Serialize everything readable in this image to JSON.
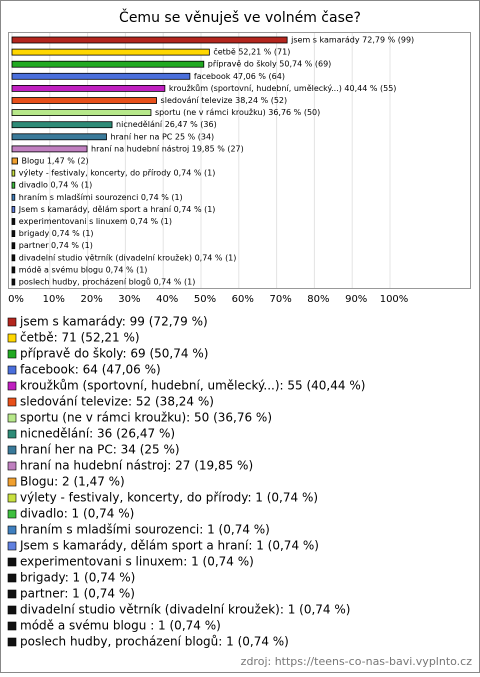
{
  "chart_data": {
    "type": "bar",
    "orientation": "horizontal",
    "title": "Čemu se věnuješ ve volném čase?",
    "categories": [
      "jsem s kamarády",
      "četbě",
      "přípravě do školy",
      "facebook",
      "kroužkům (sportovní, hudební, umělecký...)",
      "sledování televize",
      "sportu (ne v rámci kroužku)",
      "nicnedělání",
      "hraní her na PC",
      "hraní na hudební nástroj",
      "Blogu",
      "výlety - festivaly, koncerty, do přírody",
      "divadlo",
      "hraním s mladšími sourozenci",
      "Jsem s kamarády, dělám sport a hraní",
      "experimentovani s linuxem",
      "brigady",
      "partner",
      "divadelní studio větrník (divadelní kroužek)",
      "módě a svému blogu",
      "poslech hudby, procházení blogů"
    ],
    "values": [
      72.79,
      52.21,
      50.74,
      47.06,
      40.44,
      38.24,
      36.76,
      26.47,
      25,
      19.85,
      1.47,
      0.74,
      0.74,
      0.74,
      0.74,
      0.74,
      0.74,
      0.74,
      0.74,
      0.74,
      0.74
    ],
    "value_labels": [
      "jsem s kamarády 72,79 % (99)",
      "četbě 52,21 % (71)",
      "přípravě do školy 50,74 % (69)",
      "facebook 47,06 % (64)",
      "kroužkům (sportovní, hudební, umělecký...) 40,44 % (55)",
      "sledování televize 38,24 % (52)",
      "sportu (ne v rámci kroužku) 36,76 % (50)",
      "nicnedělání 26,47 % (36)",
      "hraní her na PC 25 % (34)",
      "hraní na hudební nástroj 19,85 % (27)",
      "Blogu 1,47 % (2)",
      "výlety - festivaly, koncerty, do přírody 0,74 % (1)",
      "divadlo 0,74 % (1)",
      "hraním s mladšími sourozenci 0,74 % (1)",
      "Jsem s kamarády, dělám sport a hraní 0,74 % (1)",
      "experimentovani s linuxem 0,74 % (1)",
      "brigady 0,74 % (1)",
      "partner 0,74 % (1)",
      "divadelní studio větrník (divadelní kroužek) 0,74 % (1)",
      "módě a svému blogu  0,74 % (1)",
      "poslech hudby, procházení blogů 0,74 % (1)"
    ],
    "legend_labels": [
      "jsem s kamarády: 99 (72,79 %)",
      "četbě: 71 (52,21 %)",
      "přípravě do školy: 69 (50,74 %)",
      "facebook: 64 (47,06 %)",
      "kroužkům (sportovní, hudební, umělecký...): 55 (40,44 %)",
      "sledování televize: 52 (38,24 %)",
      "sportu (ne v rámci kroužku): 50 (36,76 %)",
      "nicnedělání: 36 (26,47 %)",
      "hraní her na PC: 34 (25 %)",
      "hraní na hudební nástroj: 27 (19,85 %)",
      "Blogu: 2 (1,47 %)",
      "výlety - festivaly, koncerty, do přírody: 1 (0,74 %)",
      "divadlo: 1 (0,74 %)",
      "hraním s mladšími sourozenci: 1 (0,74 %)",
      "Jsem s kamarády, dělám sport a hraní: 1 (0,74 %)",
      "experimentovani s linuxem: 1 (0,74 %)",
      "brigady: 1 (0,74 %)",
      "partner: 1 (0,74 %)",
      "divadelní studio větrník (divadelní kroužek): 1 (0,74 %)",
      "módě a svému blogu : 1 (0,74 %)",
      "poslech hudby, procházení blogů: 1 (0,74 %)"
    ],
    "colors": [
      "#b3261e",
      "#ffd700",
      "#22aa22",
      "#4a6fdc",
      "#c020c0",
      "#e8501a",
      "#b7e88a",
      "#2e8b77",
      "#3a7a9a",
      "#c080c0",
      "#f0a030",
      "#c8e040",
      "#40c040",
      "#4080c0",
      "#6080e0",
      "#111111",
      "#111111",
      "#111111",
      "#111111",
      "#111111",
      "#111111"
    ],
    "xlim": [
      0,
      100
    ],
    "xticks": [
      {
        "value": 0,
        "label": "0%"
      },
      {
        "value": 10,
        "label": "10%"
      },
      {
        "value": 20,
        "label": "20%"
      },
      {
        "value": 30,
        "label": "30%"
      },
      {
        "value": 40,
        "label": "40%"
      },
      {
        "value": 50,
        "label": "50%"
      },
      {
        "value": 60,
        "label": "60%"
      },
      {
        "value": 70,
        "label": "70%"
      },
      {
        "value": 80,
        "label": "80%"
      },
      {
        "value": 90,
        "label": "90%"
      },
      {
        "value": 100,
        "label": "100%"
      }
    ],
    "source": "zdroj: https://teens-co-nas-bavi.vyplnto.cz"
  }
}
